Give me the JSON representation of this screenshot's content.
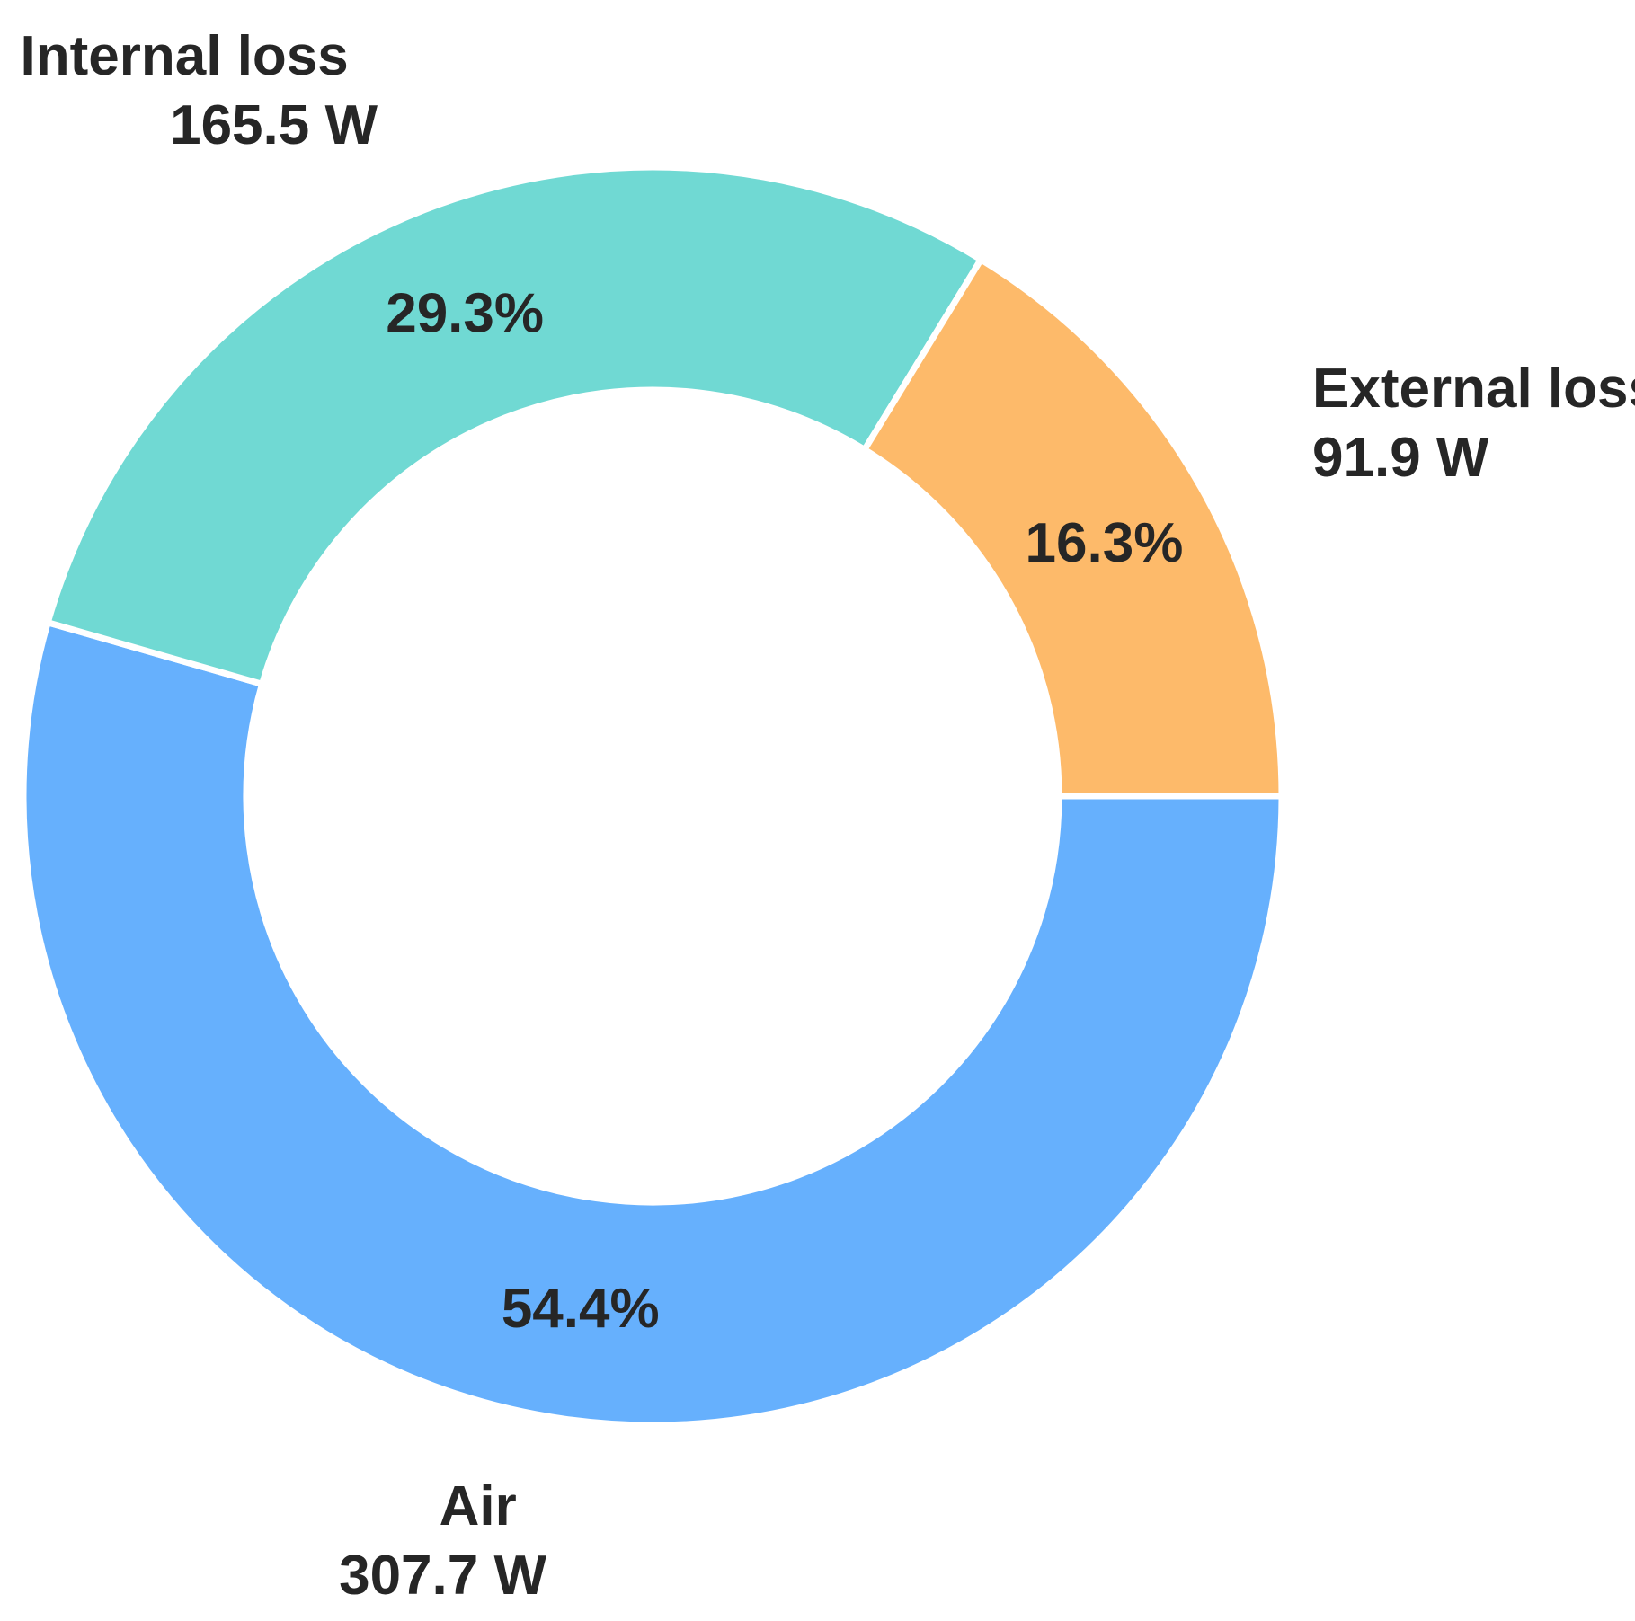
{
  "chart_data": {
    "type": "pie",
    "variant": "donut",
    "unit": "W",
    "start_angle_deg": 0,
    "direction": "clockwise",
    "slices": [
      {
        "name": "Air",
        "value": 307.7,
        "value_label": "307.7 W",
        "percent_label": "54.4%",
        "color": "#66b0fd"
      },
      {
        "name": "Internal loss",
        "value": 165.5,
        "value_label": "165.5 W",
        "percent_label": "29.3%",
        "color": "#70d9d3"
      },
      {
        "name": "External loss",
        "value": 91.9,
        "value_label": "91.9 W",
        "percent_label": "16.3%",
        "color": "#fdba6a"
      }
    ]
  }
}
